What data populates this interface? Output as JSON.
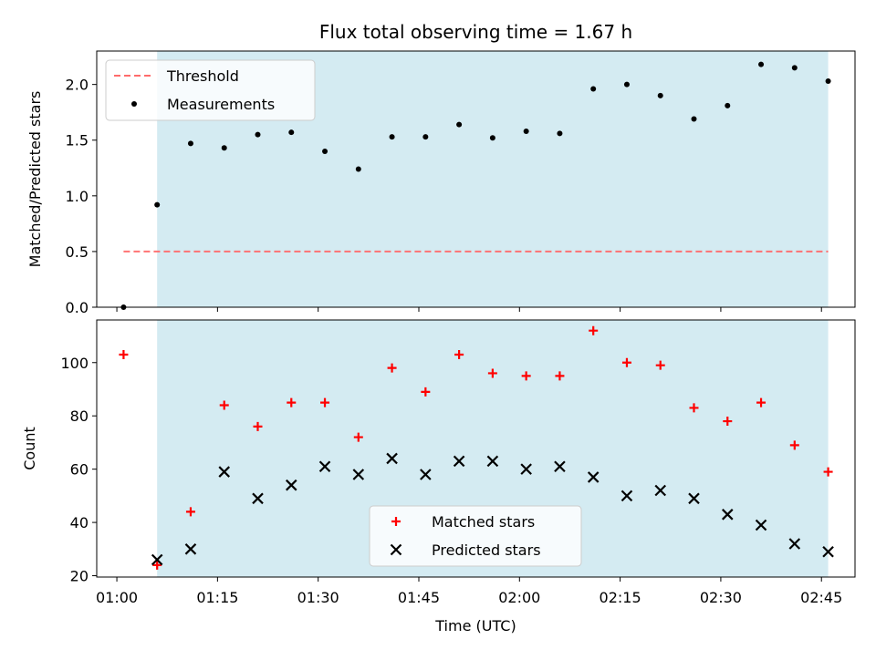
{
  "chart_data": [
    {
      "type": "scatter",
      "panel": "top",
      "title": "Flux total observing time = 1.67 h",
      "ylabel": "Matched/Predicted stars",
      "xlabel": "",
      "ylim": [
        0,
        2.3
      ],
      "yticks": [
        0.0,
        0.5,
        1.0,
        1.5,
        2.0
      ],
      "ytick_labels": [
        "0.0",
        "0.5",
        "1.0",
        "1.5",
        "2.0"
      ],
      "legend_position": "upper-left",
      "threshold": {
        "name": "Threshold",
        "value": 0.5,
        "color": "#ff6b6b",
        "x_start": "01:01",
        "x_end": "02:46"
      },
      "series": [
        {
          "name": "Measurements",
          "color": "#000000",
          "x": [
            "01:01",
            "01:06",
            "01:11",
            "01:16",
            "01:21",
            "01:26",
            "01:31",
            "01:36",
            "01:41",
            "01:46",
            "01:51",
            "01:56",
            "02:01",
            "02:06",
            "02:11",
            "02:16",
            "02:21",
            "02:26",
            "02:31",
            "02:36",
            "02:41",
            "02:46"
          ],
          "values": [
            0.0,
            0.92,
            1.47,
            1.43,
            1.55,
            1.57,
            1.4,
            1.24,
            1.53,
            1.53,
            1.64,
            1.52,
            1.58,
            1.56,
            1.96,
            2.0,
            1.9,
            1.69,
            1.81,
            2.18,
            2.15,
            2.03
          ]
        }
      ]
    },
    {
      "type": "scatter",
      "panel": "bottom",
      "title": "",
      "ylabel": "Count",
      "xlabel": "Time (UTC)",
      "ylim": [
        19.5,
        116
      ],
      "yticks": [
        20,
        40,
        60,
        80,
        100
      ],
      "ytick_labels": [
        "20",
        "40",
        "60",
        "80",
        "100"
      ],
      "xticks": [
        "01:00",
        "01:15",
        "01:30",
        "01:45",
        "02:00",
        "02:15",
        "02:30",
        "02:45"
      ],
      "legend_position": "lower-center",
      "series": [
        {
          "name": "Matched stars",
          "color": "#ff0000",
          "marker": "plus",
          "x": [
            "01:01",
            "01:06",
            "01:11",
            "01:16",
            "01:21",
            "01:26",
            "01:31",
            "01:36",
            "01:41",
            "01:46",
            "01:51",
            "01:56",
            "02:01",
            "02:06",
            "02:11",
            "02:16",
            "02:21",
            "02:26",
            "02:31",
            "02:36",
            "02:41",
            "02:46"
          ],
          "values": [
            103,
            24,
            44,
            84,
            76,
            85,
            85,
            72,
            98,
            89,
            103,
            96,
            95,
            95,
            112,
            100,
            99,
            83,
            78,
            85,
            69,
            59
          ]
        },
        {
          "name": "Predicted stars",
          "color": "#000000",
          "marker": "x",
          "x": [
            "01:06",
            "01:11",
            "01:16",
            "01:21",
            "01:26",
            "01:31",
            "01:36",
            "01:41",
            "01:46",
            "01:51",
            "01:56",
            "02:01",
            "02:06",
            "02:11",
            "02:16",
            "02:21",
            "02:26",
            "02:31",
            "02:36",
            "02:41",
            "02:46"
          ],
          "values": [
            26,
            30,
            59,
            49,
            54,
            61,
            58,
            64,
            58,
            63,
            63,
            60,
            61,
            57,
            50,
            52,
            49,
            43,
            39,
            32,
            29
          ]
        }
      ]
    }
  ],
  "shared": {
    "x_range": [
      "00:57",
      "02:50"
    ],
    "observing_window": {
      "start": "01:06",
      "end": "02:46",
      "color": "#add8e6"
    }
  }
}
